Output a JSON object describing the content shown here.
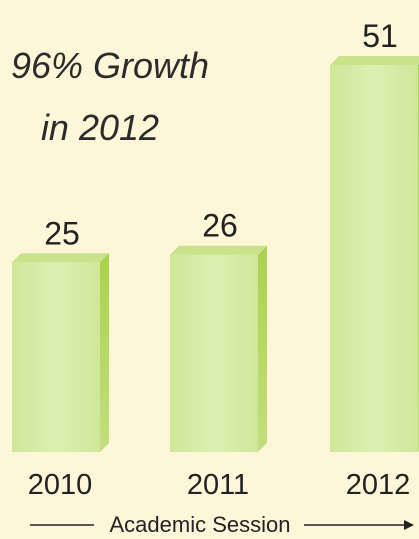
{
  "chart_data": {
    "type": "bar",
    "title_lines": [
      "96% Growth",
      "in 2012"
    ],
    "categories": [
      "2010",
      "2011",
      "2012"
    ],
    "values": [
      25,
      26,
      51
    ],
    "xlabel": "Academic Session",
    "ylabel": "",
    "ylim": [
      0,
      51
    ],
    "grid": false,
    "legend": "none"
  },
  "colors": {
    "background": "#fdf6d8",
    "bar_front": "#d8edaa",
    "bar_side": "#b5d86a",
    "bar_top": "#c9e38a",
    "text": "#222222"
  }
}
